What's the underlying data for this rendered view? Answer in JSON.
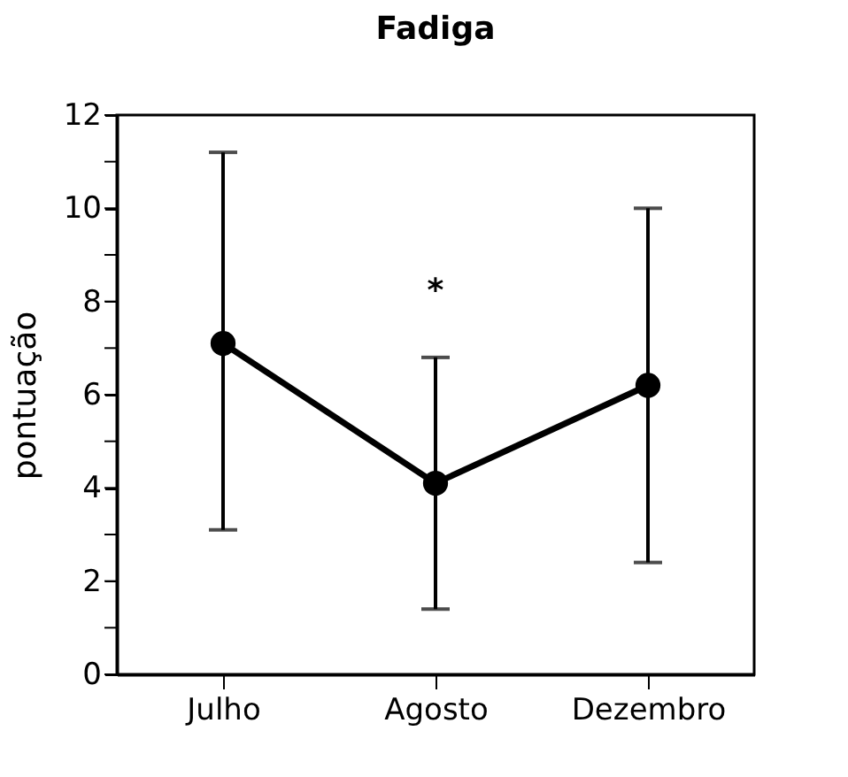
{
  "chart_data": {
    "type": "line",
    "title": "Fadiga",
    "ylabel": "pontuação",
    "categories": [
      "Julho",
      "Agosto",
      "Dezembro"
    ],
    "series": [
      {
        "color": "#000000",
        "values": [
          7.1,
          4.1,
          6.2
        ],
        "errors": [
          [
            3.1,
            11.2
          ],
          [
            1.4,
            6.8
          ],
          [
            2.4,
            10.0
          ]
        ]
      }
    ],
    "ylim": [
      0,
      12
    ],
    "yticks": [
      0,
      {
        "value": 1,
        "label": null
      },
      2,
      {
        "value": 3,
        "label": null
      },
      4,
      {
        "value": 5,
        "label": null
      },
      6,
      {
        "value": 7,
        "label": null
      },
      8,
      {
        "value": 9,
        "label": null
      },
      10,
      {
        "value": 11,
        "label": null
      },
      12
    ],
    "annotations": [
      "*"
    ],
    "marker": "circle",
    "line_style": "solid",
    "grid": false
  }
}
